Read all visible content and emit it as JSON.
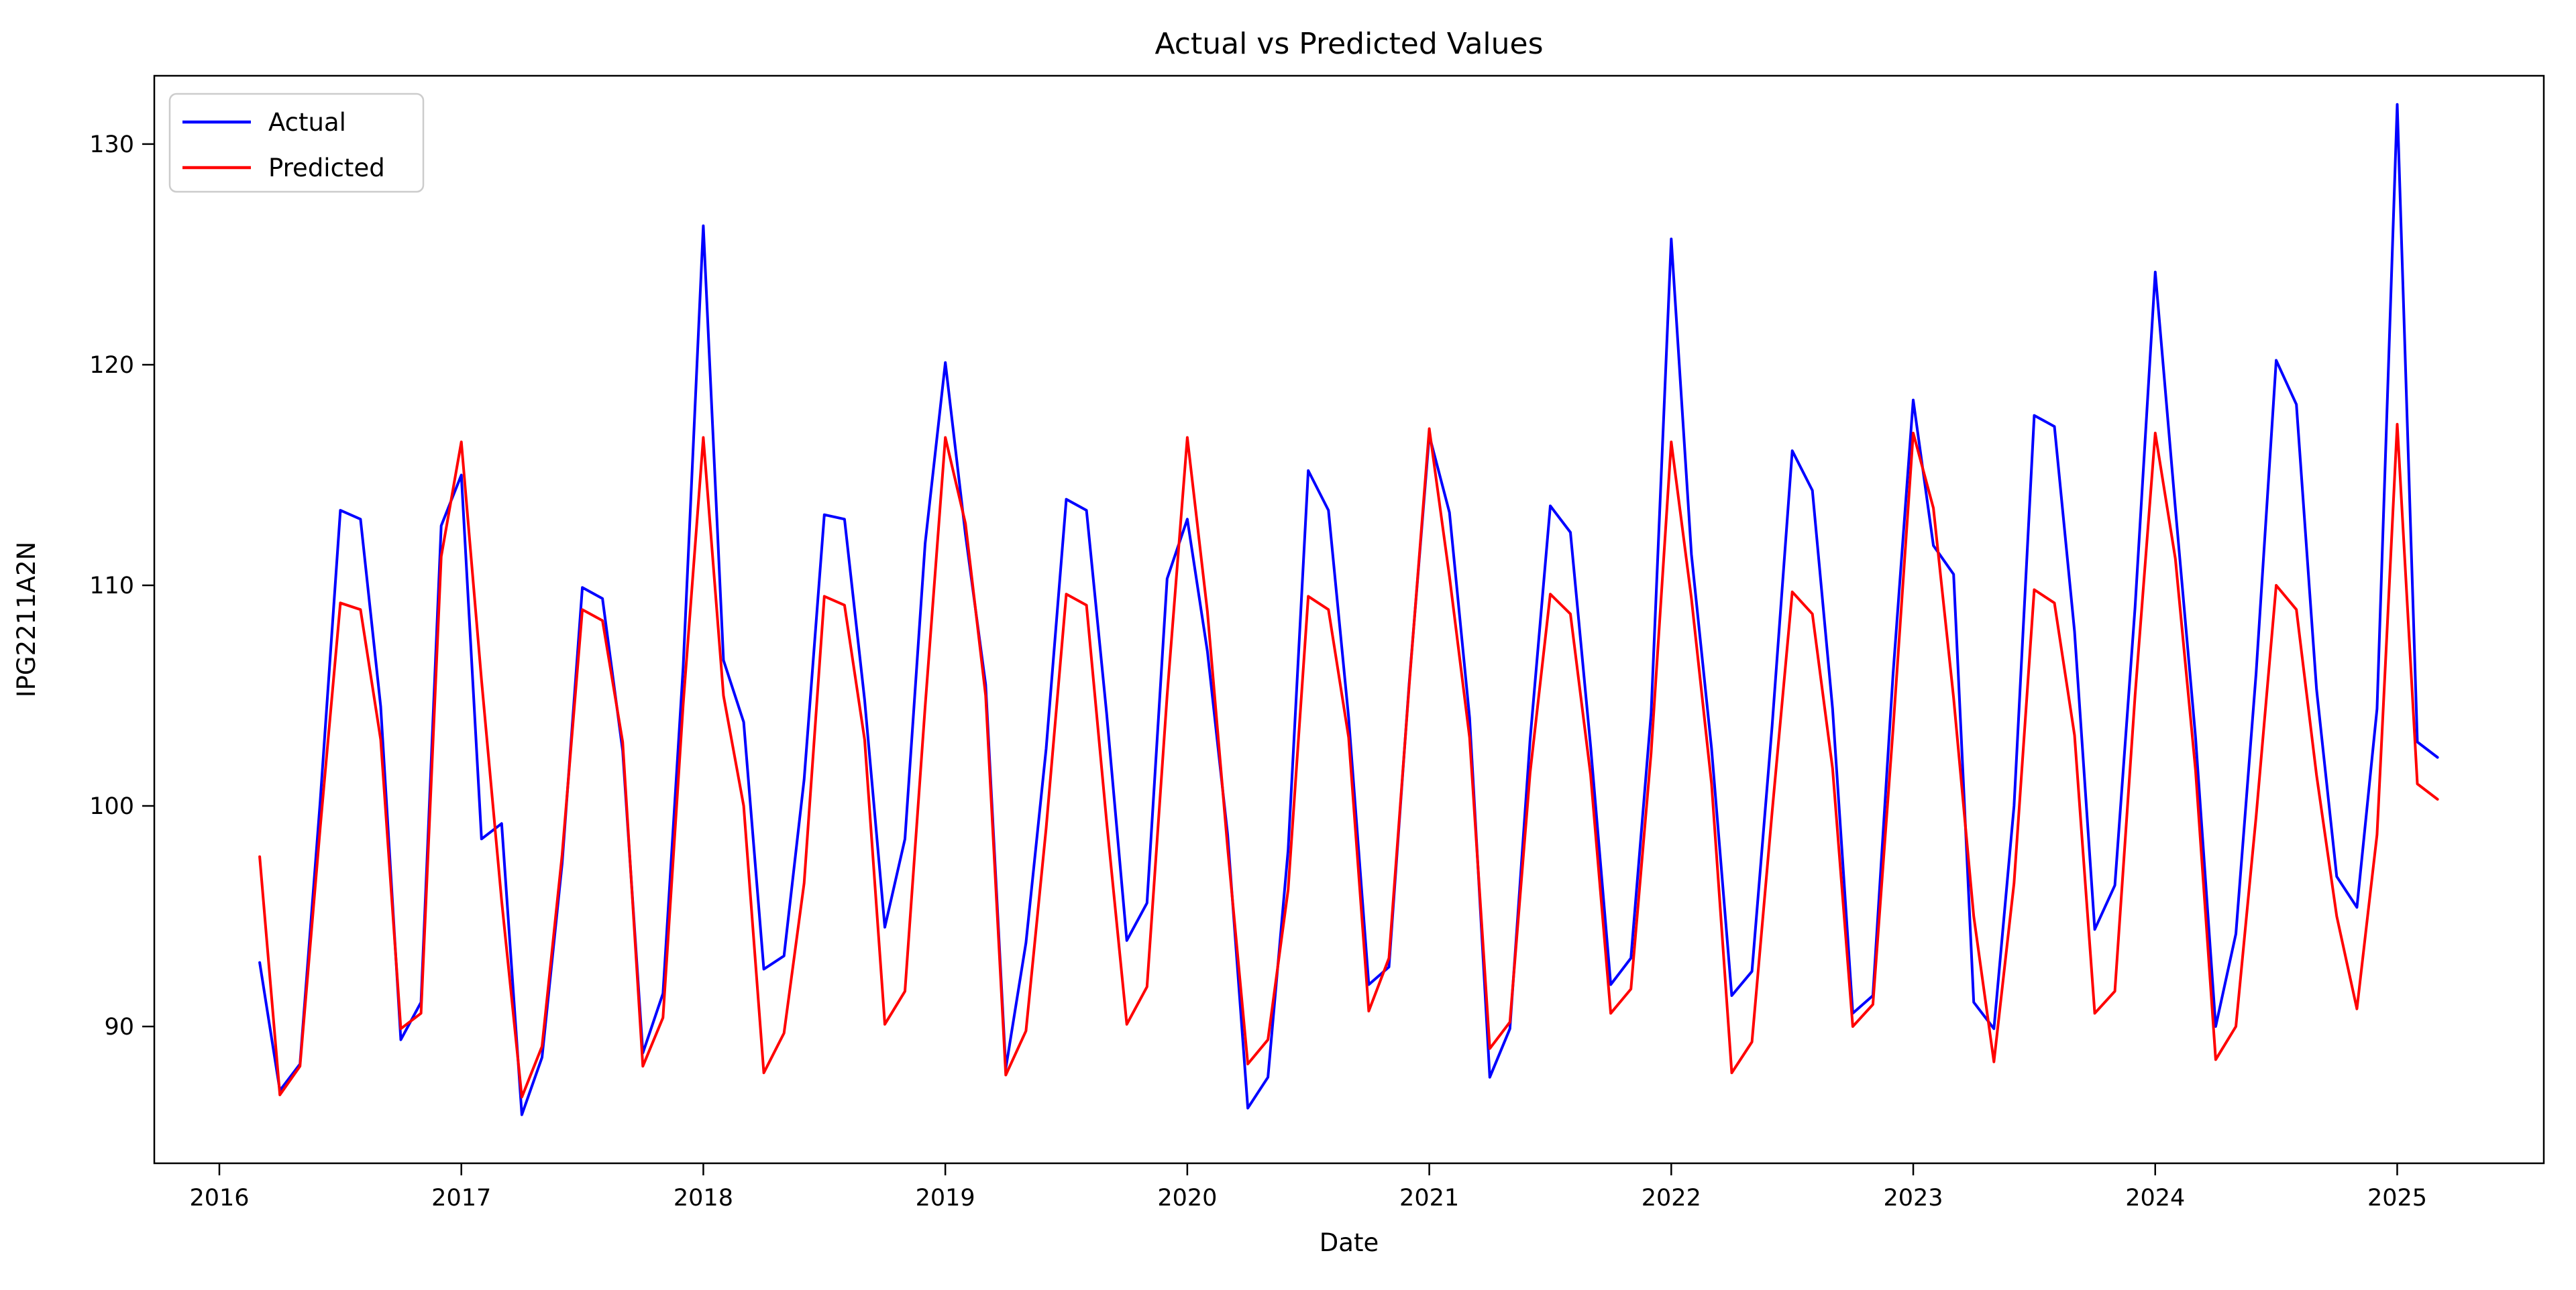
{
  "figure": {
    "title": "Actual vs Predicted Values",
    "xlabel": "Date",
    "ylabel": "IPG2211A2N",
    "background_color": "#ffffff",
    "spine_color": "#000000"
  },
  "legend": {
    "position": "upper left",
    "items": [
      {
        "label": "Actual",
        "color": "#0000ff"
      },
      {
        "label": "Predicted",
        "color": "#ff0000"
      }
    ]
  },
  "chart_data": {
    "type": "line",
    "title": "Actual vs Predicted Values",
    "xlabel": "Date",
    "ylabel": "IPG2211A2N",
    "grid": false,
    "legend_position": "upper left",
    "x_start": "2016-03",
    "x_end": "2025-03",
    "x_frequency": "monthly",
    "x_tick_labels": [
      "2016",
      "2017",
      "2018",
      "2019",
      "2020",
      "2021",
      "2022",
      "2023",
      "2024",
      "2025"
    ],
    "y_tick_labels": [
      "90",
      "100",
      "110",
      "120",
      "130"
    ],
    "y_ticks": [
      90,
      100,
      110,
      120,
      130
    ],
    "ylim": [
      83.8,
      133.1
    ],
    "series": [
      {
        "name": "Actual",
        "color": "#0000ff",
        "values": [
          92.9,
          87.1,
          88.3,
          100.2,
          113.4,
          113.0,
          104.5,
          89.4,
          91.1,
          112.7,
          115.0,
          98.5,
          99.2,
          86.0,
          88.6,
          97.4,
          109.9,
          109.4,
          102.5,
          88.8,
          91.5,
          106.3,
          126.3,
          106.6,
          103.8,
          92.6,
          93.2,
          101.2,
          113.2,
          113.0,
          104.8,
          94.5,
          98.5,
          111.9,
          120.1,
          112.3,
          105.5,
          88.1,
          93.8,
          102.6,
          113.9,
          113.4,
          104.2,
          93.9,
          95.6,
          110.3,
          113.0,
          107.0,
          98.7,
          86.3,
          87.7,
          98.0,
          115.2,
          113.4,
          104.0,
          91.9,
          92.7,
          105.5,
          116.8,
          113.3,
          104.0,
          87.7,
          89.9,
          103.0,
          113.6,
          112.4,
          102.7,
          91.9,
          93.1,
          104.2,
          125.7,
          111.4,
          102.6,
          91.4,
          92.5,
          103.6,
          116.1,
          114.3,
          104.4,
          90.6,
          91.4,
          106.0,
          118.4,
          111.8,
          110.5,
          91.1,
          89.9,
          100.0,
          117.7,
          117.2,
          107.9,
          94.4,
          96.4,
          109.0,
          124.2,
          113.5,
          103.1,
          90.0,
          94.2,
          106.0,
          120.2,
          118.2,
          105.3,
          96.8,
          95.4,
          104.4,
          131.8,
          102.9,
          102.2
        ]
      },
      {
        "name": "Predicted",
        "color": "#ff0000",
        "values": [
          97.7,
          86.9,
          88.2,
          99.0,
          109.2,
          108.9,
          103.0,
          89.9,
          90.6,
          111.3,
          116.5,
          105.7,
          95.7,
          86.8,
          89.1,
          97.8,
          108.9,
          108.4,
          102.9,
          88.2,
          90.4,
          104.6,
          116.7,
          105.0,
          100.0,
          87.9,
          89.7,
          96.5,
          109.5,
          109.1,
          103.0,
          90.1,
          91.6,
          104.5,
          116.7,
          112.8,
          105.0,
          87.8,
          89.8,
          99.0,
          109.6,
          109.1,
          99.3,
          90.1,
          91.8,
          105.0,
          116.7,
          108.8,
          98.1,
          88.3,
          89.4,
          96.2,
          109.5,
          108.9,
          103.1,
          90.7,
          93.1,
          105.4,
          117.1,
          110.4,
          103.1,
          89.0,
          90.2,
          101.5,
          109.6,
          108.7,
          101.4,
          90.6,
          91.7,
          102.4,
          116.5,
          109.4,
          101.0,
          87.9,
          89.3,
          99.7,
          109.7,
          108.7,
          101.7,
          90.0,
          91.0,
          103.5,
          116.9,
          113.5,
          104.9,
          95.0,
          88.4,
          96.5,
          109.8,
          109.2,
          103.2,
          90.6,
          91.6,
          105.0,
          116.9,
          111.2,
          101.6,
          88.5,
          90.0,
          99.5,
          110.0,
          108.9,
          101.4,
          95.0,
          90.8,
          98.7,
          117.3,
          101.0,
          100.3
        ]
      }
    ]
  }
}
